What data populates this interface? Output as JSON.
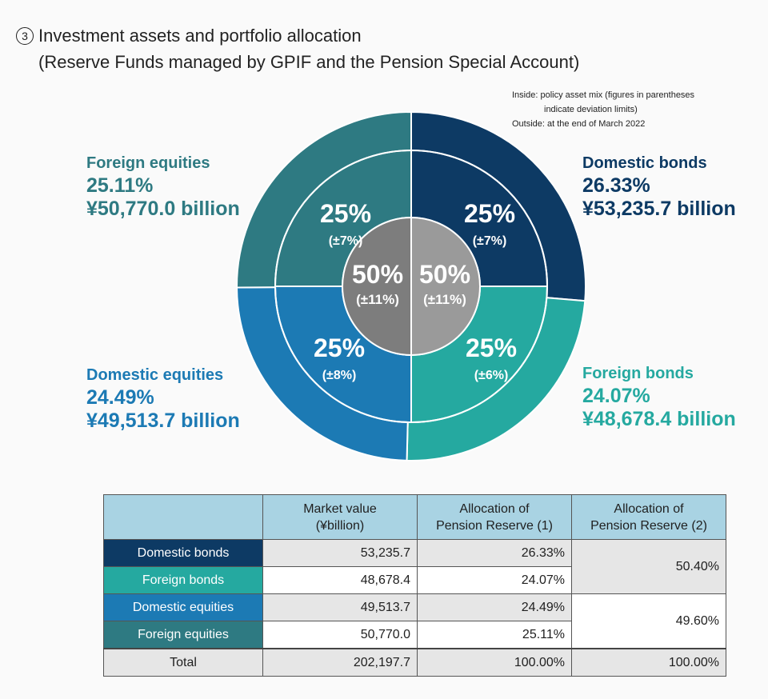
{
  "heading": {
    "number_glyph": "3",
    "line1": "Investment assets and portfolio allocation",
    "line2": "(Reserve Funds managed by GPIF and the Pension Special Account)"
  },
  "note": {
    "line1": "Inside: policy asset mix (figures in parentheses",
    "line2": "indicate deviation limits)",
    "line3": "Outside: at the end of March 2022"
  },
  "colors": {
    "domestic_bonds": "#0d3a64",
    "foreign_bonds": "#25a9a0",
    "domestic_equities": "#1c7ab4",
    "foreign_equities": "#2e7a82",
    "center_left": "#7d7d7d",
    "center_right": "#9a9a9a",
    "table_header": "#a9d3e3"
  },
  "chart_data": {
    "type": "pie",
    "outer_ring": {
      "description_from_note": "Outside: at the end of March 2022",
      "slices": [
        {
          "name": "Domestic bonds",
          "percent": 26.33,
          "value_label": "26.33%",
          "amount_label": "¥53,235.7 billion"
        },
        {
          "name": "Foreign bonds",
          "percent": 24.07,
          "value_label": "24.07%",
          "amount_label": "¥48,678.4 billion"
        },
        {
          "name": "Domestic equities",
          "percent": 24.49,
          "value_label": "24.49%",
          "amount_label": "¥49,513.7 billion"
        },
        {
          "name": "Foreign equities",
          "percent": 25.11,
          "value_label": "25.11%",
          "amount_label": "¥50,770.0 billion"
        }
      ]
    },
    "policy_ring": [
      {
        "name": "Domestic bonds",
        "percent": 25,
        "label": "25%",
        "limit": "(±7%)"
      },
      {
        "name": "Foreign bonds",
        "percent": 25,
        "label": "25%",
        "limit": "(±6%)"
      },
      {
        "name": "Domestic equities",
        "percent": 25,
        "label": "25%",
        "limit": "(±8%)"
      },
      {
        "name": "Foreign equities",
        "percent": 25,
        "label": "25%",
        "limit": "(±7%)"
      }
    ],
    "center": [
      {
        "percent": 50,
        "label": "50%",
        "limit": "(±11%)"
      },
      {
        "percent": 50,
        "label": "50%",
        "limit": "(±11%)"
      }
    ]
  },
  "table": {
    "headers": [
      "",
      "Market value\n(¥billion)",
      "Allocation of\nPension Reserve (1)",
      "Allocation of\nPension Reserve (2)"
    ],
    "rows": [
      {
        "label": "Domestic bonds",
        "market_value": "53,235.7",
        "alloc1": "26.33%"
      },
      {
        "label": "Foreign bonds",
        "market_value": "48,678.4",
        "alloc1": "24.07%"
      },
      {
        "label": "Domestic equities",
        "market_value": "49,513.7",
        "alloc1": "24.49%"
      },
      {
        "label": "Foreign equities",
        "market_value": "50,770.0",
        "alloc1": "25.11%"
      }
    ],
    "alloc2_groups": [
      "50.40%",
      "49.60%"
    ],
    "total": {
      "label": "Total",
      "market_value": "202,197.7",
      "alloc1": "100.00%",
      "alloc2": "100.00%"
    }
  }
}
